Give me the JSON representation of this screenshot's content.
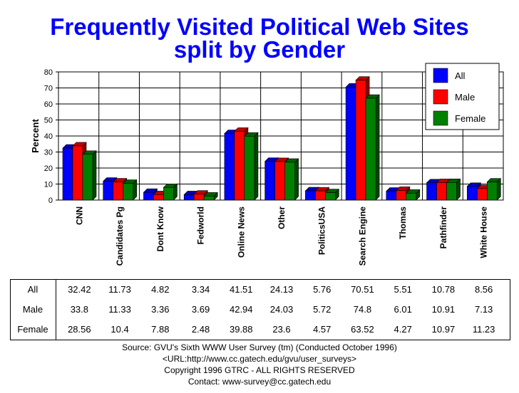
{
  "title_lines": [
    "Frequently Visited Political Web Sites",
    "split by Gender"
  ],
  "chart_data": {
    "type": "bar",
    "title": "Frequently Visited Political Web Sites split by Gender",
    "xlabel": "",
    "ylabel": "Percent",
    "ylim": [
      0,
      80
    ],
    "yticks": [
      0,
      10,
      20,
      30,
      40,
      50,
      60,
      70,
      80
    ],
    "grid": true,
    "legend_position": "top-right",
    "categories": [
      "CNN",
      "Candidates Pg",
      "Dont Know",
      "Fedworld",
      "Online News",
      "Other",
      "PoliticsUSA",
      "Search Engine",
      "Thomas",
      "Pathfinder",
      "White House"
    ],
    "series": [
      {
        "name": "All",
        "color": "#0000ff",
        "values": [
          32.42,
          11.73,
          4.82,
          3.34,
          41.51,
          24.13,
          5.76,
          70.51,
          5.51,
          10.78,
          8.56
        ]
      },
      {
        "name": "Male",
        "color": "#ff0000",
        "values": [
          33.8,
          11.33,
          3.36,
          3.69,
          42.94,
          24.03,
          5.72,
          74.8,
          6.01,
          10.91,
          7.13
        ]
      },
      {
        "name": "Female",
        "color": "#008000",
        "values": [
          28.56,
          10.4,
          7.88,
          2.48,
          39.88,
          23.6,
          4.57,
          63.52,
          4.27,
          10.97,
          11.23
        ]
      }
    ]
  },
  "table": {
    "rows": [
      {
        "label": "All",
        "values": [
          "32.42",
          "11.73",
          "4.82",
          "3.34",
          "41.51",
          "24.13",
          "5.76",
          "70.51",
          "5.51",
          "10.78",
          "8.56"
        ]
      },
      {
        "label": "Male",
        "values": [
          "33.8",
          "11.33",
          "3.36",
          "3.69",
          "42.94",
          "24.03",
          "5.72",
          "74.8",
          "6.01",
          "10.91",
          "7.13"
        ]
      },
      {
        "label": "Female",
        "values": [
          "28.56",
          "10.4",
          "7.88",
          "2.48",
          "39.88",
          "23.6",
          "4.57",
          "63.52",
          "4.27",
          "10.97",
          "11.23"
        ]
      }
    ]
  },
  "footer": {
    "source": "Source: GVU's Sixth WWW User Survey (tm) (Conducted October 1996)",
    "url": "<URL:http://www.cc.gatech.edu/gvu/user_surveys>",
    "copyright": "Copyright 1996 GTRC - ALL RIGHTS RESERVED",
    "contact": "Contact: www-survey@cc.gatech.edu"
  }
}
